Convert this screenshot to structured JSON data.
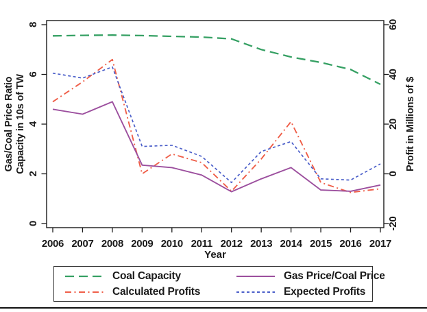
{
  "chart_data": {
    "type": "line",
    "x": [
      2006,
      2007,
      2008,
      2009,
      2010,
      2011,
      2012,
      2013,
      2014,
      2015,
      2016,
      2017
    ],
    "xlabel": "Year",
    "left_axis": {
      "label_line1": "Gas/Coal Price Ratio",
      "label_line2": "Capacity in 10s of TW",
      "ticks": [
        0,
        2,
        4,
        6,
        8
      ],
      "range": [
        0,
        8
      ]
    },
    "right_axis": {
      "label": "Profit in Millions of $",
      "ticks": [
        -20,
        0,
        20,
        40,
        60
      ],
      "range": [
        -20,
        60
      ]
    },
    "grid": false,
    "legend_position": "bottom",
    "series": [
      {
        "name": "Coal Capacity",
        "axis": "left",
        "color": "#35a063",
        "style": "long-dash",
        "values": [
          7.55,
          7.57,
          7.58,
          7.56,
          7.53,
          7.5,
          7.43,
          7.0,
          6.7,
          6.48,
          6.2,
          5.6
        ]
      },
      {
        "name": "Calculated Profits",
        "axis": "right",
        "color": "#ef5e48",
        "style": "dash-dot",
        "values": [
          29,
          37,
          46,
          0,
          8,
          4.5,
          -7,
          6,
          21,
          -3.5,
          -7.5,
          -6
        ]
      },
      {
        "name": "Gas Price/Coal Price",
        "axis": "left",
        "color": "#9c4f9e",
        "style": "solid",
        "values": [
          4.6,
          4.4,
          4.9,
          2.35,
          2.25,
          1.95,
          1.28,
          1.8,
          2.25,
          1.35,
          1.3,
          1.55
        ]
      },
      {
        "name": "Expected Profits",
        "axis": "right",
        "color": "#4a5ec9",
        "style": "short-dash",
        "values": [
          40.5,
          38.5,
          43,
          11,
          11.5,
          7,
          -3.5,
          9,
          13,
          -2,
          -2.5,
          4
        ]
      }
    ]
  }
}
